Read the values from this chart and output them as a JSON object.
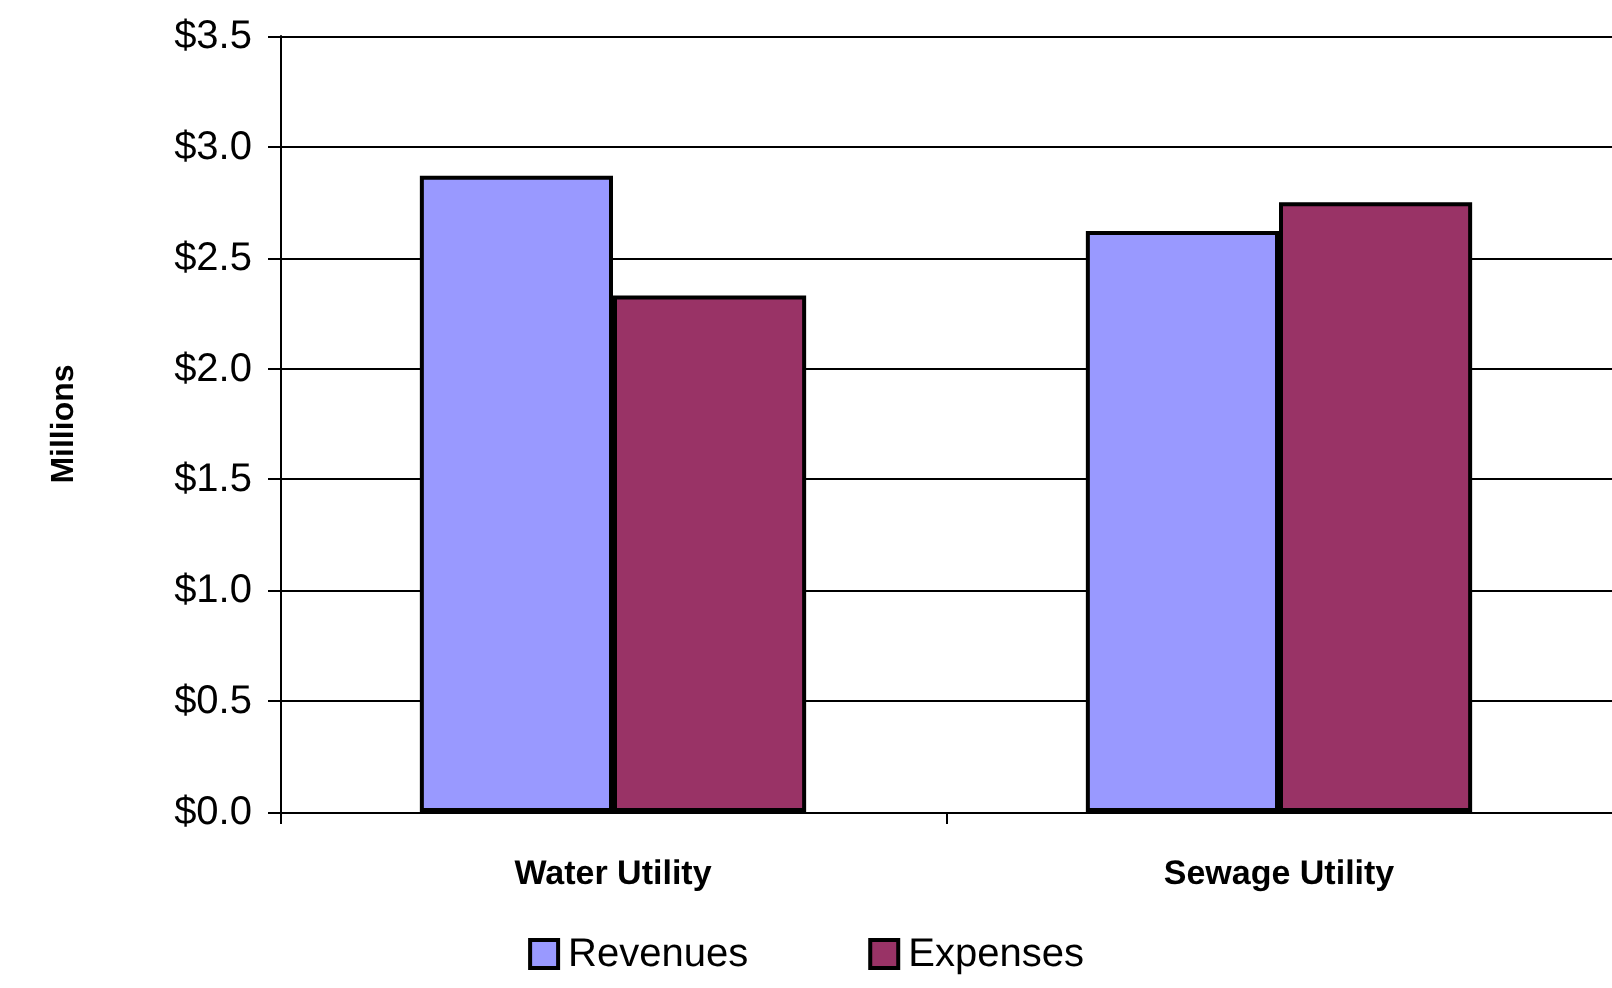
{
  "chart_data": {
    "type": "bar",
    "ylabel": "Millions",
    "categories": [
      "Water Utility",
      "Sewage Utility"
    ],
    "series": [
      {
        "name": "Revenues",
        "color": "#9999ff",
        "values": [
          2.87,
          2.62
        ]
      },
      {
        "name": "Expenses",
        "color": "#993366",
        "values": [
          2.33,
          2.75
        ]
      }
    ],
    "ylim": [
      0,
      3.5
    ],
    "yticks": [
      {
        "value": 0,
        "label": "$0.0"
      },
      {
        "value": 0.5,
        "label": "$0.5"
      },
      {
        "value": 1,
        "label": "$1.0"
      },
      {
        "value": 1.5,
        "label": "$1.5"
      },
      {
        "value": 2,
        "label": "$2.0"
      },
      {
        "value": 2.5,
        "label": "$2.5"
      },
      {
        "value": 3,
        "label": "$3.0"
      },
      {
        "value": 3.5,
        "label": "$3.5"
      }
    ],
    "grid": true,
    "legend": "bottom"
  }
}
